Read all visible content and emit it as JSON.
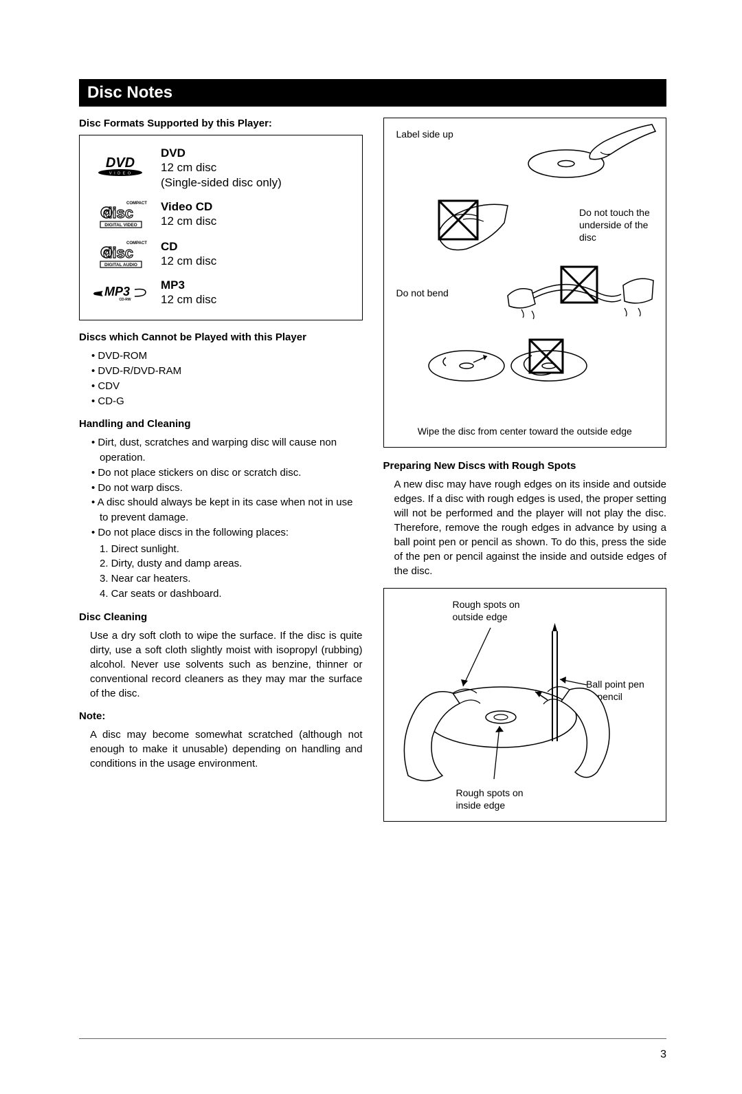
{
  "title": "Disc Notes",
  "page_number": "3",
  "left": {
    "formats_heading": "Disc Formats Supported by this Player:",
    "formats": [
      {
        "logo": "dvd",
        "title": "DVD",
        "desc": "12 cm disc\n(Single-sided disc only)"
      },
      {
        "logo": "vcd",
        "title": "Video CD",
        "desc": "12 cm disc"
      },
      {
        "logo": "cd",
        "title": "CD",
        "desc": "12 cm disc"
      },
      {
        "logo": "mp3",
        "title": "MP3",
        "desc": "12 cm disc"
      }
    ],
    "cannot_heading": "Discs which Cannot be Played with this Player",
    "cannot_items": [
      "DVD-ROM",
      "DVD-R/DVD-RAM",
      "CDV",
      "CD-G"
    ],
    "handling_heading": "Handling and Cleaning",
    "handling_items": [
      "Dirt, dust, scratches and warping disc will cause non operation.",
      "Do not place stickers on disc or scratch disc.",
      "Do not warp discs.",
      "A disc should always be kept in its case when not in use to prevent damage.",
      "Do not place discs in the following places:"
    ],
    "places_items": [
      "1. Direct sunlight.",
      "2. Dirty, dusty and damp areas.",
      "3. Near car heaters.",
      "4. Car seats or dashboard."
    ],
    "cleaning_heading": "Disc Cleaning",
    "cleaning_para": "Use a dry soft cloth to wipe the surface. If the disc is quite dirty, use a soft cloth slightly moist with isopropyl (rubbing) alcohol. Never use solvents such as benzine, thinner or conventional record cleaners as they may mar the surface of the disc.",
    "note_heading": "Note:",
    "note_para": "A disc may become somewhat scratched (although not enough to make it unusable) depending on handling and conditions in the usage environment."
  },
  "right": {
    "diagram1": {
      "label_up": "Label side up",
      "no_touch": "Do not touch the underside of the disc",
      "no_bend": "Do not bend",
      "wipe": "Wipe the disc from center toward the outside edge"
    },
    "prep_heading": "Preparing New Discs with Rough Spots",
    "prep_para": "A new disc may have rough edges on its inside and outside edges. If a disc with rough edges is used, the proper setting will not be performed and the player will not play the disc. Therefore, remove the rough edges in advance by using a ball point pen or pencil as shown. To do this, press the side of the pen or pencil against the inside and outside edges of the disc.",
    "diagram2": {
      "rough_out": "Rough spots on outside edge",
      "pen": "Ball point pen or pencil",
      "rough_in": "Rough spots on inside edge"
    }
  },
  "colors": {
    "text": "#000000",
    "bg": "#ffffff",
    "bar_bg": "#000000",
    "bar_fg": "#ffffff",
    "rule": "#666666"
  }
}
